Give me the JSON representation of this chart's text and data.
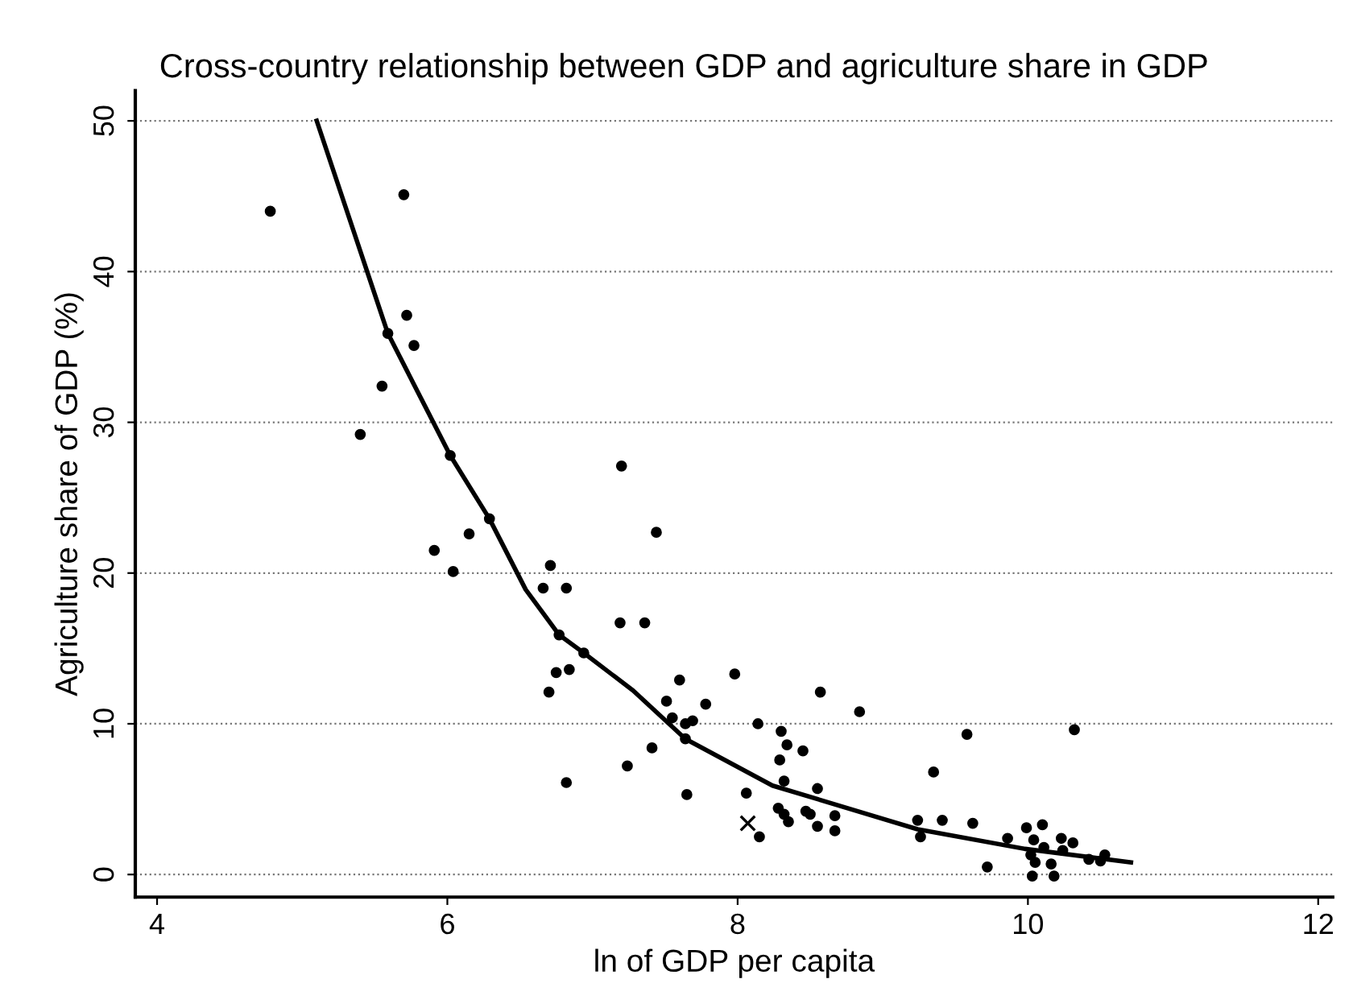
{
  "chart_data": {
    "type": "scatter",
    "title": "Cross-country relationship between GDP and agriculture share in GDP",
    "xlabel": "ln of GDP per capita",
    "ylabel": "Agriculture share of GDP (%)",
    "xlim": [
      3.85,
      12.1
    ],
    "ylim": [
      -1.5,
      52
    ],
    "xticks": [
      4,
      6,
      8,
      10,
      12
    ],
    "yticks": [
      0,
      10,
      20,
      30,
      40,
      50
    ],
    "grid": "y",
    "legend": false,
    "series": [
      {
        "marker": "circle",
        "color": "#000000",
        "x": [
          4.78,
          5.7,
          5.72,
          5.59,
          5.77,
          5.55,
          5.4,
          6.02,
          7.2,
          6.29,
          6.15,
          7.44,
          5.91,
          6.04,
          6.71,
          6.66,
          6.82,
          7.19,
          7.36,
          6.77,
          6.94,
          6.75,
          6.84,
          6.7,
          7.98,
          7.6,
          7.51,
          7.78,
          7.55,
          7.69,
          7.64,
          8.14,
          7.64,
          7.41,
          7.24,
          6.82,
          7.65,
          8.06,
          8.15,
          8.57,
          8.84,
          8.3,
          8.34,
          8.45,
          8.29,
          9.58,
          10.32,
          9.35,
          8.32,
          8.55,
          8.28,
          8.32,
          8.35,
          8.47,
          8.5,
          8.55,
          8.67,
          8.67,
          9.24,
          9.26,
          9.41,
          9.62,
          9.72,
          9.86,
          9.99,
          10.1,
          10.04,
          10.11,
          10.02,
          10.05,
          10.16,
          10.03,
          10.18,
          10.23,
          10.24,
          10.31,
          10.42,
          10.5,
          10.53
        ],
        "values": [
          44.0,
          45.1,
          37.1,
          35.9,
          35.1,
          32.4,
          29.2,
          27.8,
          27.1,
          23.6,
          22.6,
          22.7,
          21.5,
          20.1,
          20.5,
          19.0,
          19.0,
          16.7,
          16.7,
          15.9,
          14.7,
          13.4,
          13.6,
          12.1,
          13.3,
          12.9,
          11.5,
          11.3,
          10.4,
          10.2,
          10.0,
          10.0,
          9.0,
          8.4,
          7.2,
          6.1,
          5.3,
          5.4,
          2.5,
          12.1,
          10.8,
          9.5,
          8.6,
          8.2,
          7.6,
          9.3,
          9.6,
          6.8,
          6.2,
          5.7,
          4.4,
          4.0,
          3.5,
          4.2,
          4.0,
          3.2,
          3.9,
          2.9,
          3.6,
          2.5,
          3.6,
          3.4,
          0.5,
          2.4,
          3.1,
          3.3,
          2.3,
          1.8,
          1.3,
          0.8,
          0.7,
          -0.1,
          -0.1,
          2.4,
          1.6,
          2.1,
          1.0,
          0.9,
          1.3
        ]
      },
      {
        "marker": "cross",
        "color": "#000000",
        "x": [
          8.07
        ],
        "values": [
          3.4
        ]
      },
      {
        "type": "line",
        "marker": "none",
        "line_style": "solid",
        "color": "#000000",
        "x": [
          5.1,
          5.59,
          6.02,
          6.29,
          6.54,
          6.77,
          6.94,
          7.28,
          7.64,
          8.24,
          9.24,
          9.98,
          10.71
        ],
        "values": [
          50,
          35.9,
          27.8,
          23.6,
          18.9,
          15.9,
          14.7,
          12.2,
          9.0,
          5.9,
          3.0,
          1.7,
          0.8
        ]
      }
    ]
  }
}
